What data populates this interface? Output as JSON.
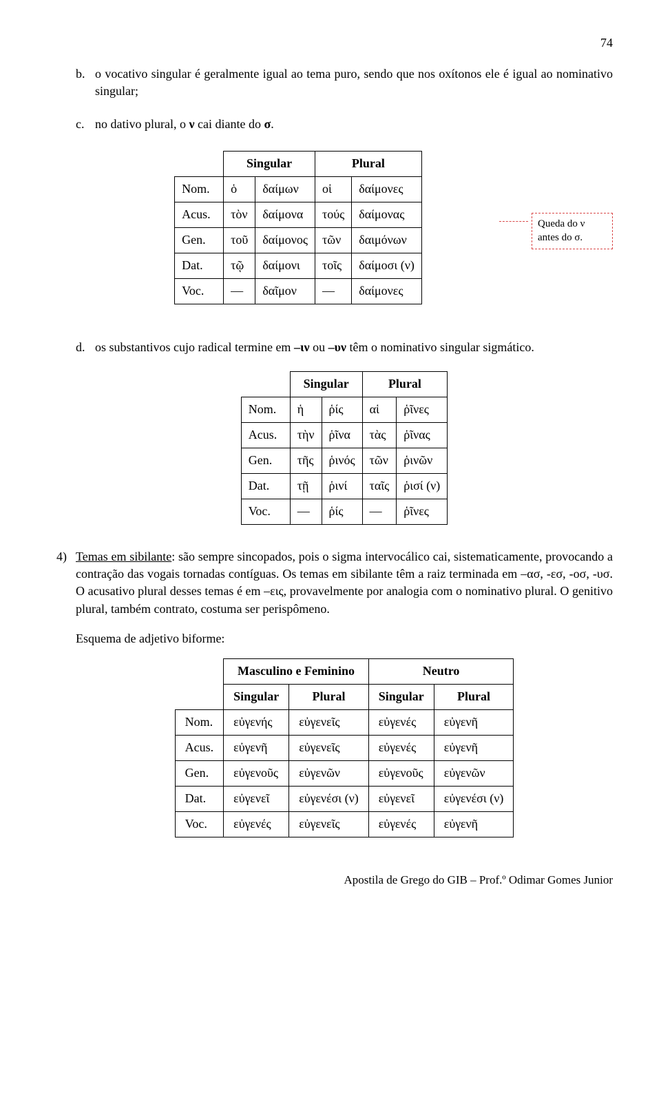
{
  "page_number": "74",
  "item_b": {
    "marker": "b.",
    "text_part1": "o vocativo singular é geralmente igual ao tema puro, sendo que nos oxítonos ele é igual ao nominativo singular;"
  },
  "item_c": {
    "marker": "c.",
    "text": "no dativo plural, o ",
    "bold1": "ν",
    "text2": " cai diante do ",
    "bold2": "σ",
    "text3": "."
  },
  "table1": {
    "headers": {
      "singular": "Singular",
      "plural": "Plural"
    },
    "rows": [
      {
        "case": "Nom.",
        "s_art": "ὁ",
        "s_form": "δαίμων",
        "p_art": "οἱ",
        "p_form": "δαίμονες"
      },
      {
        "case": "Acus.",
        "s_art": "τὸν",
        "s_form": "δαίμονα",
        "p_art": "τούς",
        "p_form": "δαίμονας"
      },
      {
        "case": "Gen.",
        "s_art": "τοῦ",
        "s_form": "δαίμονος",
        "p_art": "τῶν",
        "p_form": "δαιμόνων"
      },
      {
        "case": "Dat.",
        "s_art": "τῷ",
        "s_form": "δαίμονι",
        "p_art": "τοῖς",
        "p_form": "δαίμοσι (ν)"
      },
      {
        "case": "Voc.",
        "s_art": "—",
        "s_form": "δαῖμον",
        "p_art": "—",
        "p_form": "δαίμονες"
      }
    ]
  },
  "annotation": {
    "line1": "Queda do ν",
    "line2": "antes do σ."
  },
  "item_d": {
    "marker": "d.",
    "text1": "os substantivos cujo radical termine em ",
    "bold1": "–ιν",
    "text2": " ou ",
    "bold2": "–υν",
    "text3": " têm o nominativo singular sigmático."
  },
  "table2": {
    "headers": {
      "singular": "Singular",
      "plural": "Plural"
    },
    "rows": [
      {
        "case": "Nom.",
        "s_art": "ἡ",
        "s_form": "ῥίς",
        "p_art": "αἱ",
        "p_form": "ῥῖνες"
      },
      {
        "case": "Acus.",
        "s_art": "τὴν",
        "s_form": "ῥῖνα",
        "p_art": "τὰς",
        "p_form": "ῥῖνας"
      },
      {
        "case": "Gen.",
        "s_art": "τῆς",
        "s_form": "ῥινός",
        "p_art": "τῶν",
        "p_form": "ῥινῶν"
      },
      {
        "case": "Dat.",
        "s_art": "τῇ",
        "s_form": "ῥινί",
        "p_art": "ταῖς",
        "p_form": "ῥισί (ν)"
      },
      {
        "case": "Voc.",
        "s_art": "—",
        "s_form": "ῥίς",
        "p_art": "—",
        "p_form": "ῥῖνες"
      }
    ]
  },
  "item4": {
    "marker": "4)",
    "underlined": "Temas em sibilante",
    "text": ": são sempre sincopados, pois o sigma intervocálico cai, sistematicamente, provocando a contração das vogais tornadas contíguas. Os temas em sibilante têm a raiz terminada em –ασ, -εσ, -οσ, -υσ. O acusativo plural desses temas é em –εις, provavelmente por analogia com o nominativo plural. O genitivo plural, também contrato, costuma ser perispômeno."
  },
  "scheme_label": "Esquema de adjetivo biforme:",
  "table3": {
    "head1": {
      "mf": "Masculino e Feminino",
      "n": "Neutro"
    },
    "head2": {
      "s": "Singular",
      "p": "Plural"
    },
    "rows": [
      {
        "case": "Nom.",
        "mfs": "εὐγενής",
        "mfp": "εὐγενεῖς",
        "ns": "εὐγενές",
        "np": "εὐγενῆ"
      },
      {
        "case": "Acus.",
        "mfs": "εὐγενῆ",
        "mfp": "εὐγενεῖς",
        "ns": "εὐγενές",
        "np": "εὐγενῆ"
      },
      {
        "case": "Gen.",
        "mfs": "εὐγενοῦς",
        "mfp": "εὐγενῶν",
        "ns": "εὐγενοῦς",
        "np": "εὐγενῶν"
      },
      {
        "case": "Dat.",
        "mfs": "εὐγενεῖ",
        "mfp": "εὐγενέσι (ν)",
        "ns": "εὐγενεῖ",
        "np": "εὐγενέσι (ν)"
      },
      {
        "case": "Voc.",
        "mfs": "εὐγενές",
        "mfp": "εὐγενεῖς",
        "ns": "εὐγενές",
        "np": "εὐγενῆ"
      }
    ]
  },
  "footer": "Apostila de Grego do GIB – Prof.º Odimar Gomes Junior"
}
